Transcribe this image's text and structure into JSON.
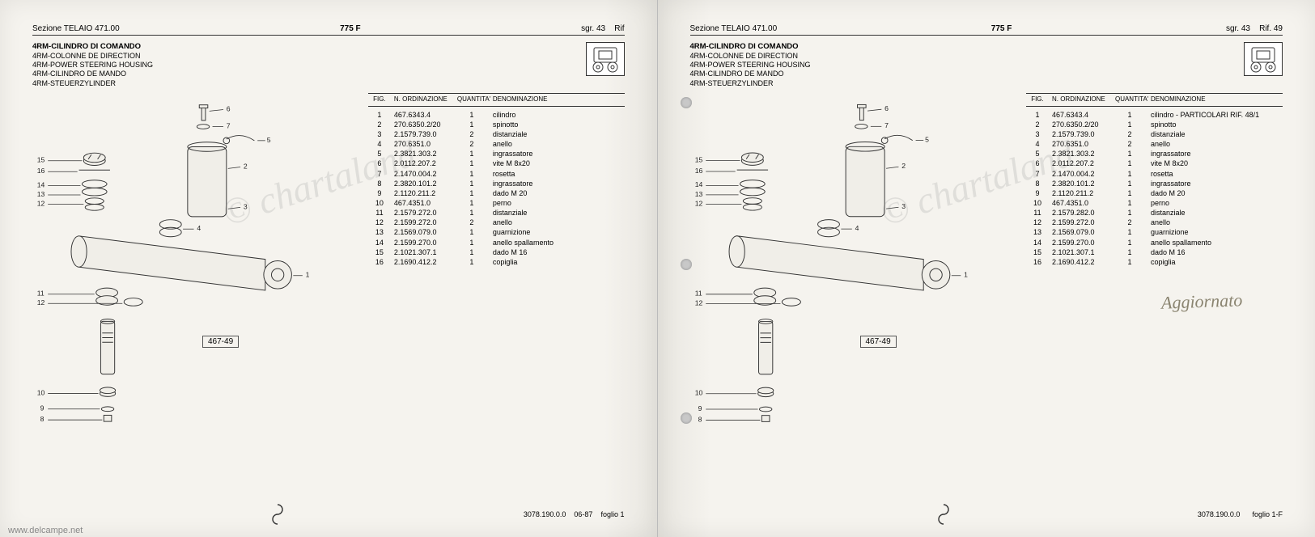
{
  "header": {
    "section": "Sezione TELAIO 471.00",
    "model": "775 F",
    "sg_left": "sgr. 43",
    "sg_right": "sgr. 43",
    "rif_left": "Rif",
    "rif_right": "Rif. 49"
  },
  "titles": {
    "main": "4RM-CILINDRO DI COMANDO",
    "fr": "4RM-COLONNE DE DIRECTION",
    "en": "4RM-POWER STEERING HOUSING",
    "es": "4RM-CILINDRO DE MANDO",
    "de": "4RM-STEUERZYLINDER"
  },
  "table_head": {
    "fig": "FIG.",
    "ord": "N. ORDINAZIONE",
    "qty": "QUANTITA'",
    "den": "DENOMINAZIONE"
  },
  "parts_left": [
    {
      "fig": "1",
      "ord": "467.6343.4",
      "qty": "1",
      "den": "cilindro"
    },
    {
      "fig": "2",
      "ord": "270.6350.2/20",
      "qty": "1",
      "den": "spinotto"
    },
    {
      "fig": "3",
      "ord": "2.1579.739.0",
      "qty": "2",
      "den": "distanziale"
    },
    {
      "fig": "4",
      "ord": "270.6351.0",
      "qty": "2",
      "den": "anello"
    },
    {
      "fig": "5",
      "ord": "2.3821.303.2",
      "qty": "1",
      "den": "ingrassatore"
    },
    {
      "fig": "6",
      "ord": "2.0112.207.2",
      "qty": "1",
      "den": "vite M 8x20"
    },
    {
      "fig": "7",
      "ord": "2.1470.004.2",
      "qty": "1",
      "den": "rosetta"
    },
    {
      "fig": "8",
      "ord": "2.3820.101.2",
      "qty": "1",
      "den": "ingrassatore"
    },
    {
      "fig": "9",
      "ord": "2.1120.211.2",
      "qty": "1",
      "den": "dado M 20"
    },
    {
      "fig": "10",
      "ord": "467.4351.0",
      "qty": "1",
      "den": "perno"
    },
    {
      "fig": "11",
      "ord": "2.1579.272.0",
      "qty": "1",
      "den": "distanziale"
    },
    {
      "fig": "12",
      "ord": "2.1599.272.0",
      "qty": "2",
      "den": "anello"
    },
    {
      "fig": "13",
      "ord": "2.1569.079.0",
      "qty": "1",
      "den": "guarnizione"
    },
    {
      "fig": "14",
      "ord": "2.1599.270.0",
      "qty": "1",
      "den": "anello spallamento"
    },
    {
      "fig": "15",
      "ord": "2.1021.307.1",
      "qty": "1",
      "den": "dado M 16"
    },
    {
      "fig": "16",
      "ord": "2.1690.412.2",
      "qty": "1",
      "den": "copiglia"
    }
  ],
  "parts_right": [
    {
      "fig": "1",
      "ord": "467.6343.4",
      "qty": "1",
      "den": "cilindro - PARTICOLARI RIF. 48/1"
    },
    {
      "fig": "2",
      "ord": "270.6350.2/20",
      "qty": "1",
      "den": "spinotto"
    },
    {
      "fig": "3",
      "ord": "2.1579.739.0",
      "qty": "2",
      "den": "distanziale"
    },
    {
      "fig": "4",
      "ord": "270.6351.0",
      "qty": "2",
      "den": "anello"
    },
    {
      "fig": "5",
      "ord": "2.3821.303.2",
      "qty": "1",
      "den": "ingrassatore"
    },
    {
      "fig": "6",
      "ord": "2.0112.207.2",
      "qty": "1",
      "den": "vite M 8x20"
    },
    {
      "fig": "7",
      "ord": "2.1470.004.2",
      "qty": "1",
      "den": "rosetta"
    },
    {
      "fig": "8",
      "ord": "2.3820.101.2",
      "qty": "1",
      "den": "ingrassatore"
    },
    {
      "fig": "9",
      "ord": "2.1120.211.2",
      "qty": "1",
      "den": "dado M 20"
    },
    {
      "fig": "10",
      "ord": "467.4351.0",
      "qty": "1",
      "den": "perno"
    },
    {
      "fig": "11",
      "ord": "2.1579.282.0",
      "qty": "1",
      "den": "distanziale"
    },
    {
      "fig": "12",
      "ord": "2.1599.272.0",
      "qty": "2",
      "den": "anello"
    },
    {
      "fig": "13",
      "ord": "2.1569.079.0",
      "qty": "1",
      "den": "guarnizione"
    },
    {
      "fig": "14",
      "ord": "2.1599.270.0",
      "qty": "1",
      "den": "anello spallamento"
    },
    {
      "fig": "15",
      "ord": "2.1021.307.1",
      "qty": "1",
      "den": "dado M 16"
    },
    {
      "fig": "16",
      "ord": "2.1690.412.2",
      "qty": "1",
      "den": "copiglia"
    }
  ],
  "ref_box": "467-49",
  "handnote": "Aggiornato",
  "footer": {
    "code": "3078.190.0.0",
    "date": "06-87",
    "sheet_left": "foglio 1",
    "sheet_right": "foglio 1-F"
  },
  "watermark": "© chartaland",
  "site": "www.delcampe.net",
  "colors": {
    "page_bg": "#f5f3ee",
    "ink": "#333333",
    "handwriting": "#8a8470",
    "watermark": "rgba(130,130,130,0.18)"
  }
}
